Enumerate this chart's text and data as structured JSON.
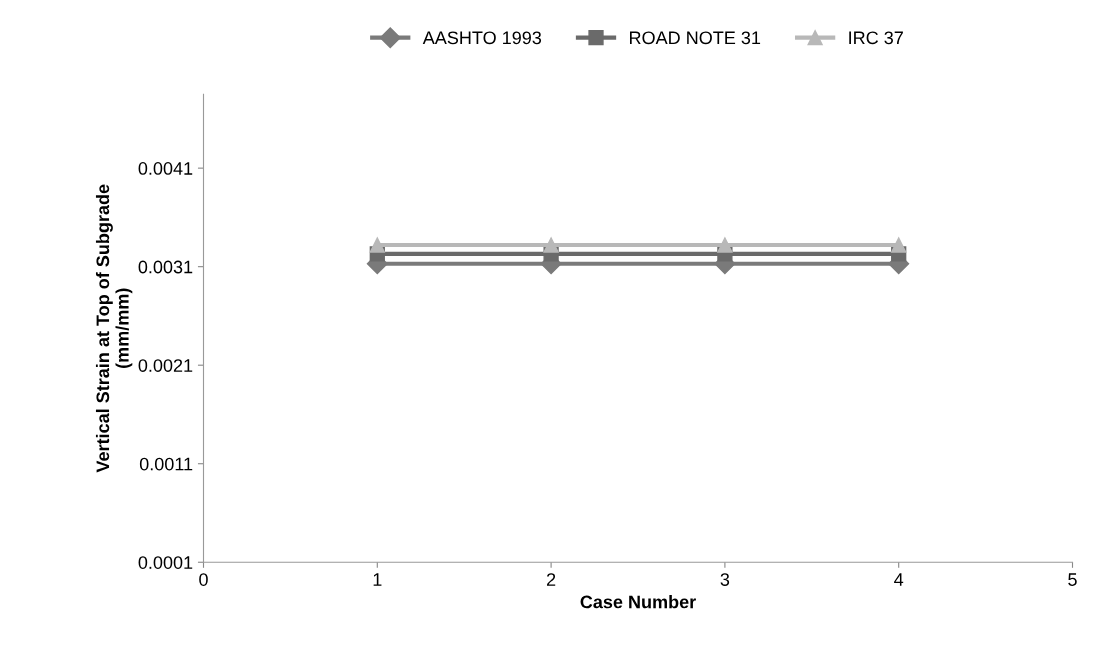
{
  "chart_data": {
    "type": "line",
    "xlabel": "Case Number",
    "ylabel": "Vertical Strain at Top of Subgrade\n(mm/mm)",
    "x": [
      1,
      2,
      3,
      4
    ],
    "xlim": [
      0,
      5
    ],
    "xticks": [
      0,
      1,
      2,
      3,
      4,
      5
    ],
    "ylim": [
      0.0001,
      0.00485
    ],
    "yticks": [
      0.0001,
      0.0011,
      0.0021,
      0.0031,
      0.0041
    ],
    "grid": false,
    "legend": "top",
    "line_style": "solid",
    "series": [
      {
        "name": "AASHTO 1993",
        "color": "#7a7a7a",
        "marker": "diamond",
        "values": [
          0.00313,
          0.00313,
          0.00313,
          0.00313
        ]
      },
      {
        "name": "ROAD NOTE 31",
        "color": "#6a6a6a",
        "marker": "square",
        "values": [
          0.00323,
          0.00323,
          0.00323,
          0.00323
        ]
      },
      {
        "name": "IRC 37",
        "color": "#b8b8b8",
        "marker": "triangle",
        "values": [
          0.00332,
          0.00332,
          0.00332,
          0.00332
        ]
      }
    ]
  }
}
